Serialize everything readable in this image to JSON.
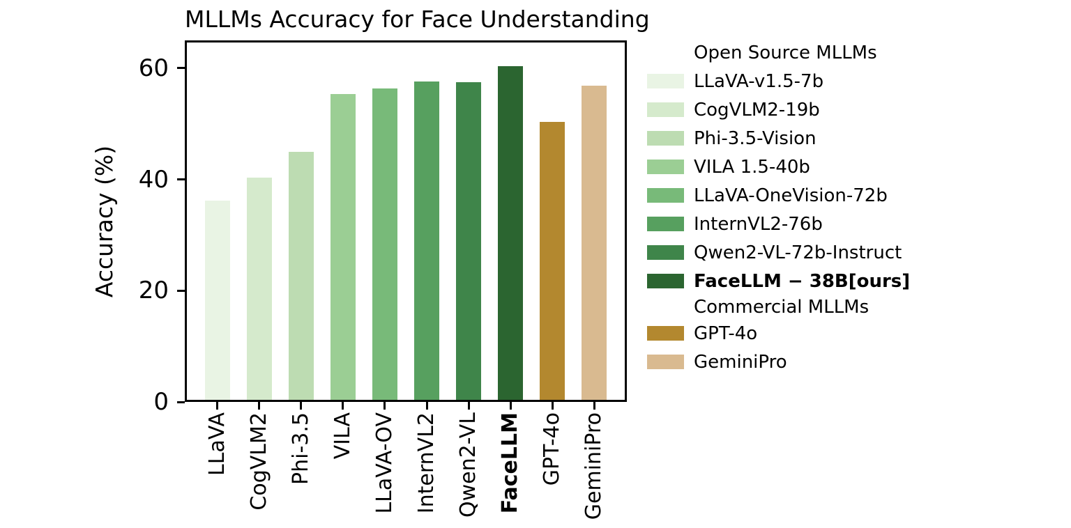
{
  "title": "MLLMs Accuracy for Face Understanding",
  "axes": {
    "ylabel": "Accuracy (%)",
    "yticks": [
      "0",
      "20",
      "40",
      "60"
    ]
  },
  "chart_data": {
    "type": "bar",
    "title": "MLLMs Accuracy for Face Understanding",
    "xlabel": "",
    "ylabel": "Accuracy (%)",
    "ylim": [
      0,
      65
    ],
    "yticks": [
      0,
      20,
      40,
      60
    ],
    "grid": false,
    "legend_position": "right",
    "categories": [
      "LLaVA",
      "CogVLM2",
      "Phi-3.5",
      "VILA",
      "LLaVA-OV",
      "InternVL2",
      "Qwen2-VL",
      "FaceLLM",
      "GPT-4o",
      "GeminiPro"
    ],
    "values": [
      36.2,
      40.3,
      45.0,
      55.4,
      56.3,
      57.6,
      57.5,
      60.4,
      50.4,
      56.8
    ],
    "bar_colors": [
      "#e9f4e4",
      "#d5eacc",
      "#bddcb2",
      "#9bce94",
      "#78ba79",
      "#57a05f",
      "#3f854a",
      "#2b6530",
      "#b3882f",
      "#d9ba90"
    ],
    "bold_categories": [
      "FaceLLM"
    ]
  },
  "legend": {
    "sections": [
      {
        "header": "Open Source MLLMs",
        "items": [
          {
            "label": "LLaVA-v1.5-7b",
            "color": "#e9f4e4",
            "bold": false
          },
          {
            "label": "CogVLM2-19b",
            "color": "#d5eacc",
            "bold": false
          },
          {
            "label": "Phi-3.5-Vision",
            "color": "#bddcb2",
            "bold": false
          },
          {
            "label": "VILA 1.5-40b",
            "color": "#9bce94",
            "bold": false
          },
          {
            "label": "LLaVA-OneVision-72b",
            "color": "#78ba79",
            "bold": false
          },
          {
            "label": "InternVL2-76b",
            "color": "#57a05f",
            "bold": false
          },
          {
            "label": "Qwen2-VL-72b-Instruct",
            "color": "#3f854a",
            "bold": false
          },
          {
            "label": "FaceLLM − 38B[ours]",
            "color": "#2b6530",
            "bold": true
          }
        ]
      },
      {
        "header": "Commercial MLLMs",
        "items": [
          {
            "label": "GPT-4o",
            "color": "#b3882f",
            "bold": false
          },
          {
            "label": "GeminiPro",
            "color": "#d9ba90",
            "bold": false
          }
        ]
      }
    ]
  },
  "colors": {
    "axis": "#000000",
    "text": "#000000",
    "background": "#ffffff",
    "ours_highlight": "#2b6530",
    "commercial_gold": "#b3882f",
    "commercial_tan": "#d9ba90"
  }
}
